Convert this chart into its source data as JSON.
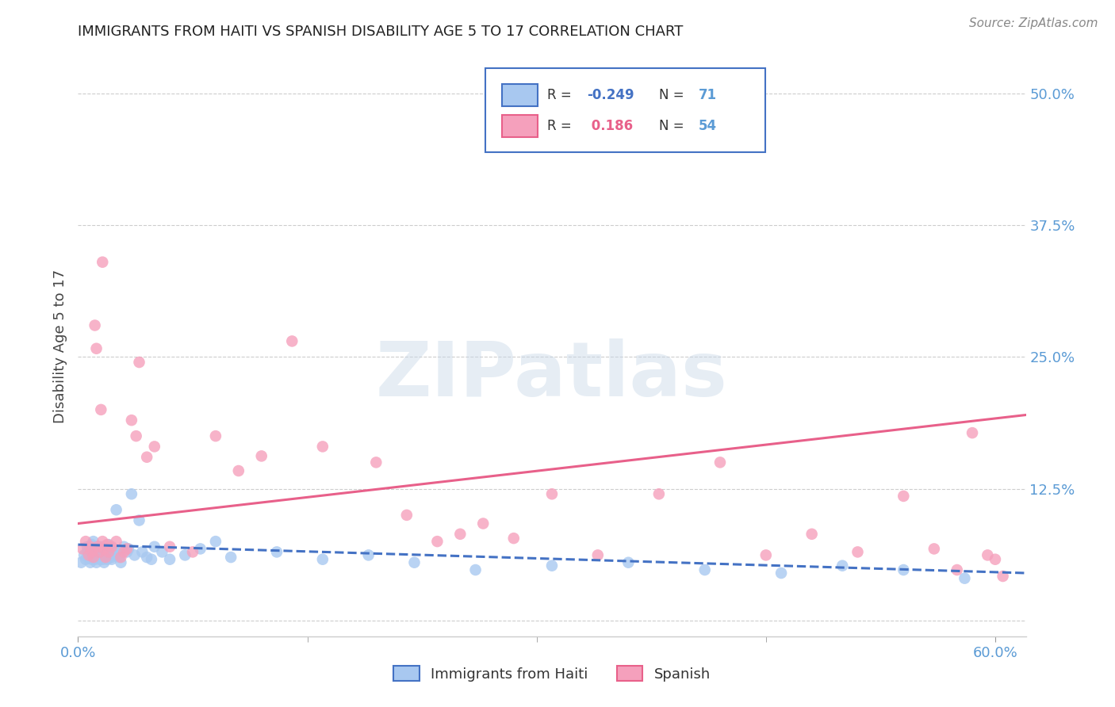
{
  "title": "IMMIGRANTS FROM HAITI VS SPANISH DISABILITY AGE 5 TO 17 CORRELATION CHART",
  "source": "Source: ZipAtlas.com",
  "ylabel": "Disability Age 5 to 17",
  "xlim": [
    0.0,
    0.62
  ],
  "ylim": [
    -0.015,
    0.535
  ],
  "yticks": [
    0.0,
    0.125,
    0.25,
    0.375,
    0.5
  ],
  "ytick_labels": [
    "",
    "12.5%",
    "25.0%",
    "37.5%",
    "50.0%"
  ],
  "haiti_R": -0.249,
  "haiti_N": 71,
  "spanish_R": 0.186,
  "spanish_N": 54,
  "haiti_color": "#a8c8f0",
  "spanish_color": "#f5a0bc",
  "haiti_line_color": "#4472c4",
  "spanish_line_color": "#e8608a",
  "haiti_scatter_x": [
    0.002,
    0.004,
    0.005,
    0.006,
    0.006,
    0.007,
    0.008,
    0.008,
    0.009,
    0.009,
    0.01,
    0.01,
    0.01,
    0.011,
    0.011,
    0.012,
    0.012,
    0.013,
    0.013,
    0.013,
    0.014,
    0.014,
    0.015,
    0.015,
    0.015,
    0.016,
    0.016,
    0.017,
    0.017,
    0.018,
    0.018,
    0.019,
    0.02,
    0.02,
    0.021,
    0.022,
    0.022,
    0.023,
    0.024,
    0.025,
    0.025,
    0.027,
    0.028,
    0.03,
    0.032,
    0.033,
    0.035,
    0.037,
    0.04,
    0.042,
    0.045,
    0.048,
    0.05,
    0.055,
    0.06,
    0.07,
    0.08,
    0.09,
    0.1,
    0.13,
    0.16,
    0.19,
    0.22,
    0.26,
    0.31,
    0.36,
    0.41,
    0.46,
    0.5,
    0.54,
    0.58
  ],
  "haiti_scatter_y": [
    0.055,
    0.062,
    0.058,
    0.07,
    0.065,
    0.06,
    0.068,
    0.055,
    0.072,
    0.058,
    0.06,
    0.065,
    0.075,
    0.058,
    0.062,
    0.055,
    0.07,
    0.06,
    0.065,
    0.068,
    0.062,
    0.058,
    0.06,
    0.07,
    0.065,
    0.058,
    0.062,
    0.068,
    0.055,
    0.065,
    0.06,
    0.058,
    0.072,
    0.062,
    0.065,
    0.06,
    0.058,
    0.068,
    0.062,
    0.105,
    0.065,
    0.06,
    0.055,
    0.07,
    0.065,
    0.068,
    0.12,
    0.062,
    0.095,
    0.065,
    0.06,
    0.058,
    0.07,
    0.065,
    0.058,
    0.062,
    0.068,
    0.075,
    0.06,
    0.065,
    0.058,
    0.062,
    0.055,
    0.048,
    0.052,
    0.055,
    0.048,
    0.045,
    0.052,
    0.048,
    0.04
  ],
  "spanish_scatter_x": [
    0.003,
    0.005,
    0.007,
    0.008,
    0.009,
    0.01,
    0.011,
    0.012,
    0.013,
    0.014,
    0.015,
    0.016,
    0.016,
    0.017,
    0.018,
    0.019,
    0.02,
    0.022,
    0.025,
    0.028,
    0.03,
    0.032,
    0.035,
    0.038,
    0.04,
    0.045,
    0.05,
    0.06,
    0.075,
    0.09,
    0.105,
    0.12,
    0.14,
    0.16,
    0.195,
    0.215,
    0.235,
    0.25,
    0.265,
    0.285,
    0.31,
    0.34,
    0.38,
    0.42,
    0.45,
    0.48,
    0.51,
    0.54,
    0.56,
    0.575,
    0.585,
    0.595,
    0.6,
    0.605
  ],
  "spanish_scatter_y": [
    0.068,
    0.075,
    0.062,
    0.07,
    0.065,
    0.06,
    0.28,
    0.258,
    0.07,
    0.065,
    0.2,
    0.34,
    0.075,
    0.068,
    0.06,
    0.072,
    0.065,
    0.07,
    0.075,
    0.06,
    0.065,
    0.068,
    0.19,
    0.175,
    0.245,
    0.155,
    0.165,
    0.07,
    0.065,
    0.175,
    0.142,
    0.156,
    0.265,
    0.165,
    0.15,
    0.1,
    0.075,
    0.082,
    0.092,
    0.078,
    0.12,
    0.062,
    0.12,
    0.15,
    0.062,
    0.082,
    0.065,
    0.118,
    0.068,
    0.048,
    0.178,
    0.062,
    0.058,
    0.042
  ],
  "haiti_trend_x": [
    0.0,
    0.62
  ],
  "haiti_trend_y": [
    0.072,
    0.045
  ],
  "spanish_trend_x": [
    0.0,
    0.62
  ],
  "spanish_trend_y": [
    0.092,
    0.195
  ],
  "watermark": "ZIPatlas",
  "background_color": "#ffffff",
  "grid_color": "#c8c8c8",
  "tick_color": "#5b9bd5",
  "legend_border_color": "#4472c4"
}
